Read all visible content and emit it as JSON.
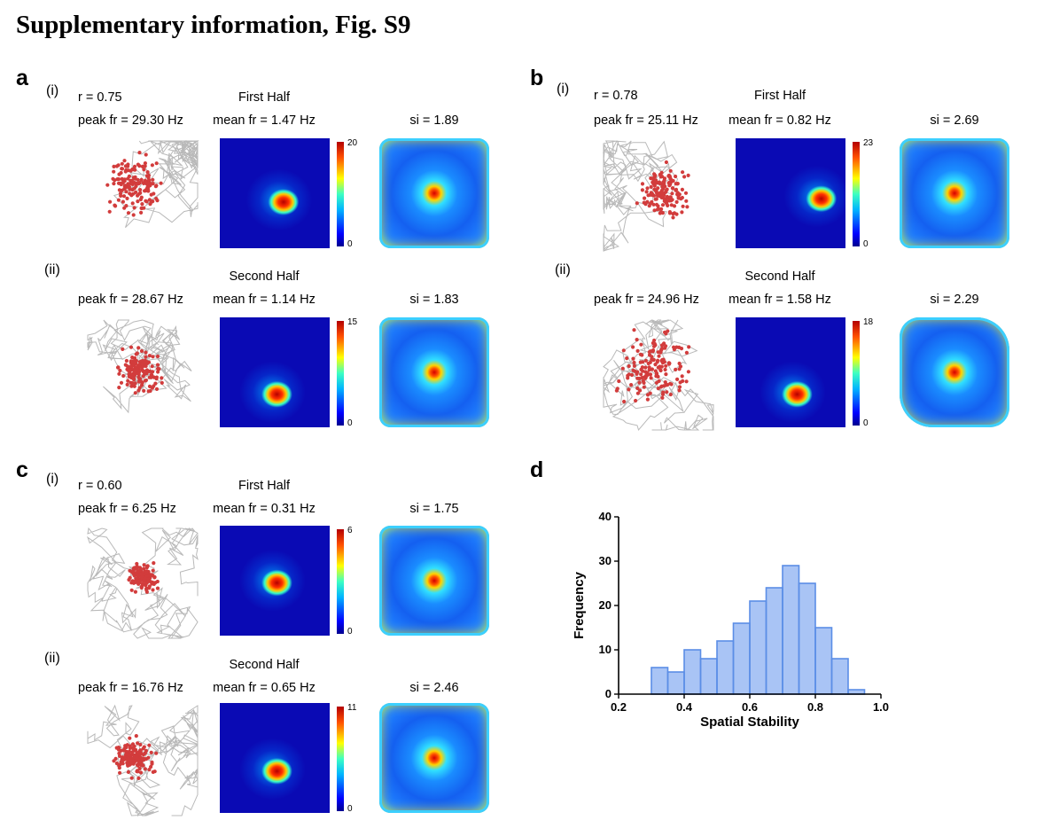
{
  "title": "Supplementary information, Fig. S9",
  "panels": {
    "a": {
      "label": "a",
      "first": {
        "roman": "(i)",
        "r": "r = 0.75",
        "section": "First Half",
        "peak": "peak fr = 29.30 Hz",
        "mean": "mean fr = 1.47 Hz",
        "si": "si = 1.89",
        "cmax": "20",
        "cmin": "0"
      },
      "second": {
        "roman": "(ii)",
        "section": "Second Half",
        "peak": "peak fr = 28.67 Hz",
        "mean": "mean fr = 1.14 Hz",
        "si": "si = 1.83",
        "cmax": "15",
        "cmin": "0"
      }
    },
    "b": {
      "label": "b",
      "first": {
        "roman": "(i)",
        "r": "r = 0.78",
        "section": "First Half",
        "peak": "peak fr = 25.11 Hz",
        "mean": "mean fr = 0.82 Hz",
        "si": "si = 2.69",
        "cmax": "23",
        "cmin": "0"
      },
      "second": {
        "roman": "(ii)",
        "section": "Second Half",
        "peak": "peak fr = 24.96 Hz",
        "mean": "mean fr = 1.58 Hz",
        "si": "si = 2.29",
        "cmax": "18",
        "cmin": "0"
      }
    },
    "c": {
      "label": "c",
      "first": {
        "roman": "(i)",
        "r": "r = 0.60",
        "section": "First Half",
        "peak": "peak fr = 6.25 Hz",
        "mean": "mean fr = 0.31 Hz",
        "si": "si = 1.75",
        "cmax": "6",
        "cmin": "0"
      },
      "second": {
        "roman": "(ii)",
        "section": "Second Half",
        "peak": "peak fr = 16.76 Hz",
        "mean": "mean fr = 0.65 Hz",
        "si": "si = 2.46",
        "cmax": "11",
        "cmin": "0"
      }
    },
    "d": {
      "label": "d"
    }
  },
  "colors": {
    "trajectory": "#b9b9b9",
    "spike": "#d23c3c",
    "hist_fill": "#a9c4f5",
    "hist_edge": "#5b8ee6"
  },
  "chart_data": {
    "type": "bar",
    "title": "",
    "xlabel": "Spatial Stability",
    "ylabel": "Frequency",
    "xlim": [
      0.2,
      1.0
    ],
    "ylim": [
      0,
      40
    ],
    "xticks": [
      "0.2",
      "0.4",
      "0.6",
      "0.8",
      "1.0"
    ],
    "yticks": [
      "0",
      "10",
      "20",
      "30",
      "40"
    ],
    "bin_edges": [
      0.3,
      0.35,
      0.4,
      0.45,
      0.5,
      0.55,
      0.6,
      0.65,
      0.7,
      0.75,
      0.8,
      0.85,
      0.9,
      0.95
    ],
    "values": [
      6,
      5,
      10,
      8,
      12,
      16,
      21,
      24,
      29,
      25,
      15,
      8,
      1
    ]
  }
}
